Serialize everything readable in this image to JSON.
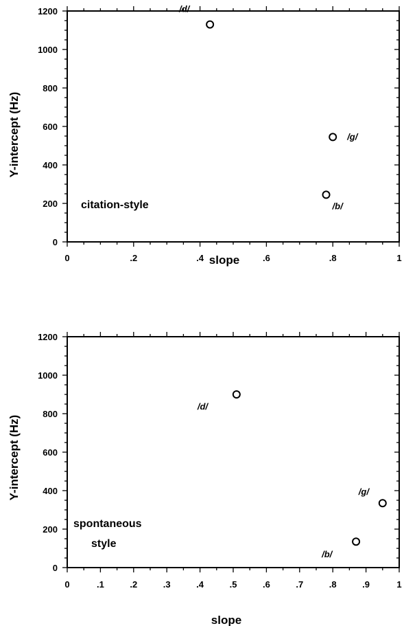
{
  "chart_data": [
    {
      "type": "scatter",
      "xlabel": "slope",
      "ylabel": "Y-intercept (Hz)",
      "xlim": [
        0,
        1
      ],
      "ylim": [
        0,
        1200
      ],
      "x_ticks": [
        "0",
        ".2",
        ".4",
        ".6",
        ".8",
        "1"
      ],
      "y_ticks": [
        "0",
        "200",
        "400",
        "600",
        "800",
        "1000",
        "1200"
      ],
      "annotation": [
        "citation-style"
      ],
      "grid": false,
      "points": [
        {
          "label": "/d/",
          "x": 0.43,
          "y": 1130
        },
        {
          "label": "/g/",
          "x": 0.8,
          "y": 545
        },
        {
          "label": "/b/",
          "x": 0.78,
          "y": 245
        }
      ]
    },
    {
      "type": "scatter",
      "xlabel": "slope",
      "ylabel": "Y-intercept (Hz)",
      "xlim": [
        0,
        1
      ],
      "ylim": [
        0,
        1200
      ],
      "x_ticks": [
        ".1",
        ".2",
        ".3",
        ".4",
        ".5",
        ".6",
        ".7",
        ".8",
        ".9",
        "1"
      ],
      "x_tick_zero": "0",
      "y_ticks": [
        "0",
        "200",
        "400",
        "600",
        "800",
        "1000",
        "1200"
      ],
      "annotation": [
        "spontaneous",
        "style"
      ],
      "grid": false,
      "points": [
        {
          "label": "/d/",
          "x": 0.51,
          "y": 900
        },
        {
          "label": "/g/",
          "x": 0.95,
          "y": 335
        },
        {
          "label": "/b/",
          "x": 0.87,
          "y": 135
        }
      ]
    }
  ]
}
